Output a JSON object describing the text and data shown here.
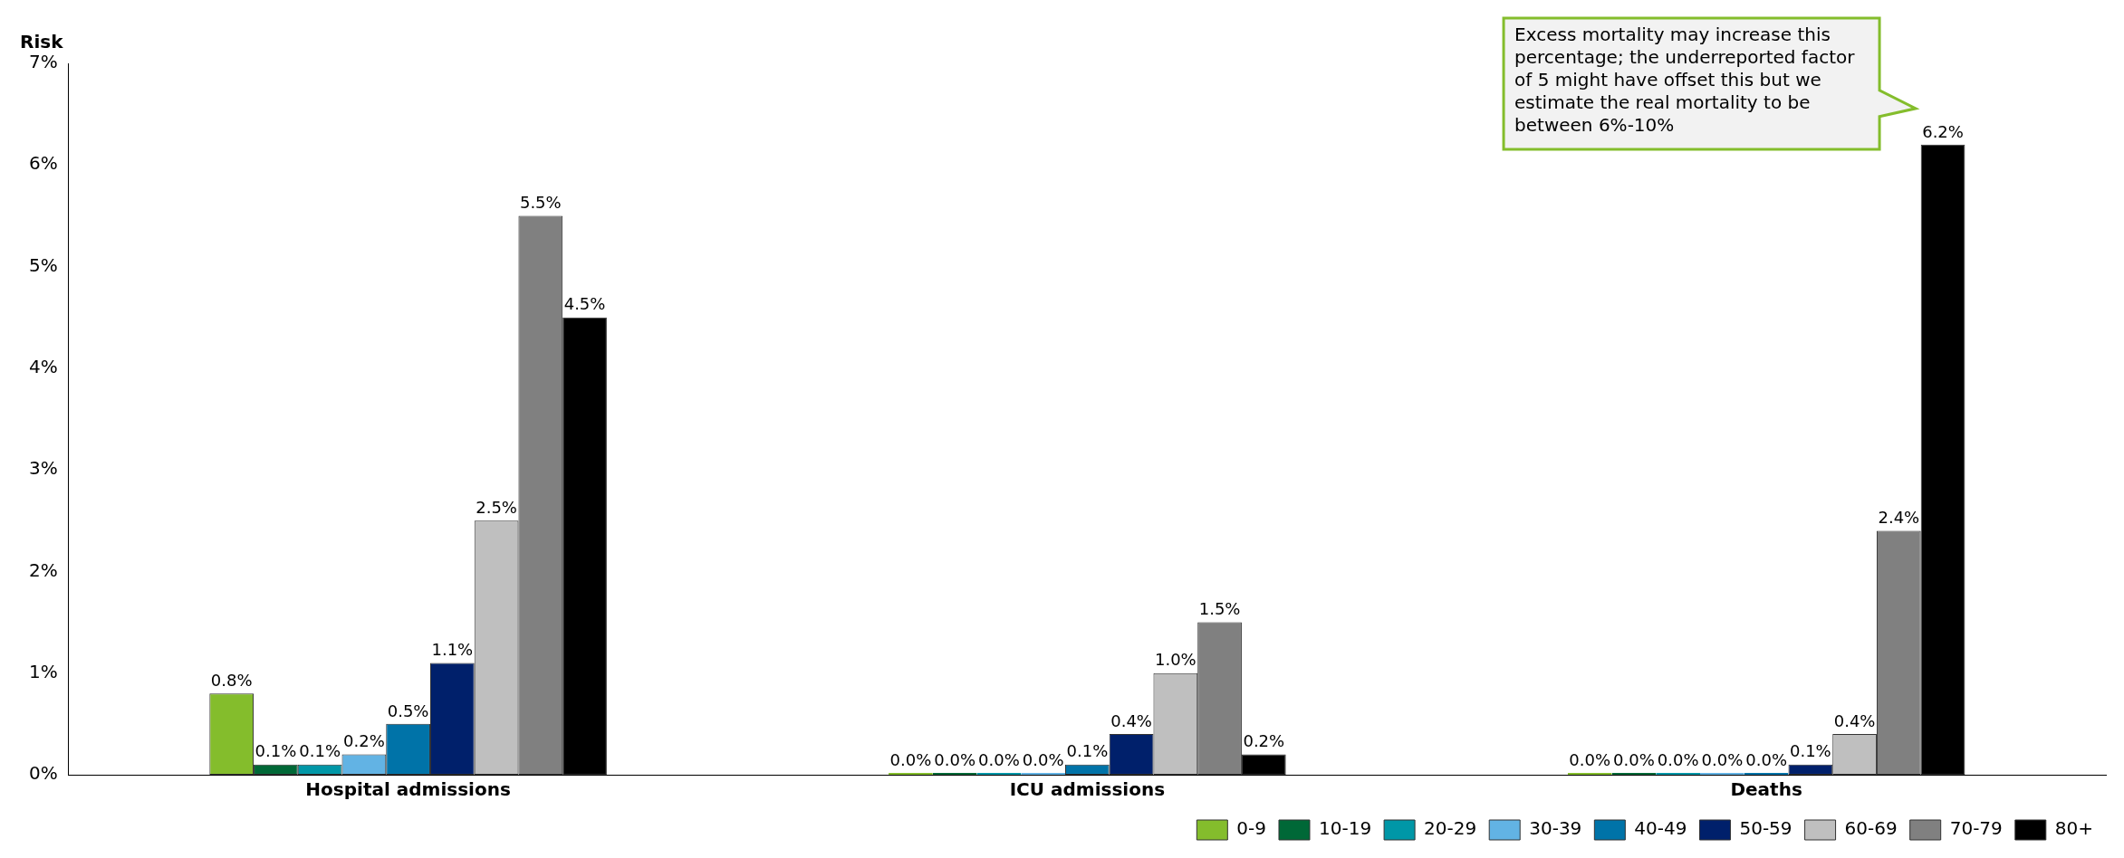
{
  "chart_data": {
    "type": "bar",
    "ylabel": "Risk",
    "categories": [
      "Hospital admissions",
      "ICU admissions",
      "Deaths"
    ],
    "series": [
      {
        "name": "0-9",
        "color": "#84bd2c",
        "values": [
          0.8,
          0.0,
          0.0
        ],
        "value_labels": [
          "0.8%",
          "0.0%",
          "0.0%"
        ]
      },
      {
        "name": "10-19",
        "color": "#006837",
        "values": [
          0.1,
          0.0,
          0.0
        ],
        "value_labels": [
          "0.1%",
          "0.0%",
          "0.0%"
        ]
      },
      {
        "name": "20-29",
        "color": "#0097a7",
        "values": [
          0.1,
          0.0,
          0.0
        ],
        "value_labels": [
          "0.1%",
          "0.0%",
          "0.0%"
        ]
      },
      {
        "name": "30-39",
        "color": "#62b3e4",
        "values": [
          0.2,
          0.0,
          0.0
        ],
        "value_labels": [
          "0.2%",
          "0.0%",
          "0.0%"
        ]
      },
      {
        "name": "40-49",
        "color": "#0073a8",
        "values": [
          0.5,
          0.1,
          0.0
        ],
        "value_labels": [
          "0.5%",
          "0.1%",
          "0.0%"
        ]
      },
      {
        "name": "50-59",
        "color": "#00206b",
        "values": [
          1.1,
          0.4,
          0.1
        ],
        "value_labels": [
          "1.1%",
          "0.4%",
          "0.1%"
        ]
      },
      {
        "name": "60-69",
        "color": "#bfbfbf",
        "values": [
          2.5,
          1.0,
          0.4
        ],
        "value_labels": [
          "2.5%",
          "1.0%",
          "0.4%"
        ]
      },
      {
        "name": "70-79",
        "color": "#808080",
        "values": [
          5.5,
          1.5,
          2.4
        ],
        "value_labels": [
          "5.5%",
          "1.5%",
          "2.4%"
        ]
      },
      {
        "name": "80+",
        "color": "#000000",
        "values": [
          4.5,
          0.2,
          6.2
        ],
        "value_labels": [
          "4.5%",
          "0.2%",
          "6.2%"
        ]
      }
    ],
    "ylim": [
      0,
      7
    ],
    "yticks": [
      {
        "value": 0,
        "label": "0%"
      },
      {
        "value": 1,
        "label": "1%"
      },
      {
        "value": 2,
        "label": "2%"
      },
      {
        "value": 3,
        "label": "3%"
      },
      {
        "value": 4,
        "label": "4%"
      },
      {
        "value": 5,
        "label": "5%"
      },
      {
        "value": 6,
        "label": "6%"
      },
      {
        "value": 7,
        "label": "7%"
      }
    ],
    "grid": false,
    "legend": "bottom right",
    "annotations": [
      "Excess mortality may increase this percentage; the underreported factor of 5 might have offset this but we estimate the real mortality to be between 6%-10%"
    ]
  }
}
